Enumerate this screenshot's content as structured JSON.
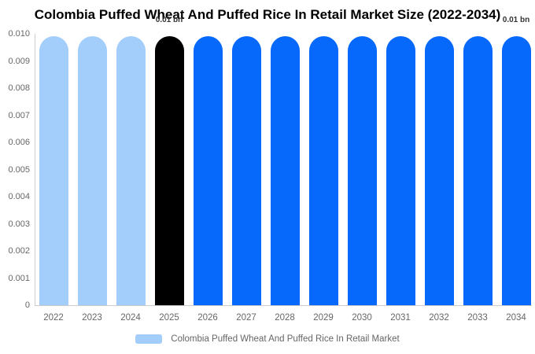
{
  "title": "Colombia Puffed Wheat And Puffed Rice In Retail Market Size (2022-2034)",
  "chart_data": {
    "type": "bar",
    "categories": [
      "2022",
      "2023",
      "2024",
      "2025",
      "2026",
      "2027",
      "2028",
      "2029",
      "2030",
      "2031",
      "2032",
      "2033",
      "2034"
    ],
    "values": [
      0.0099,
      0.0099,
      0.0099,
      0.0099,
      0.0099,
      0.0099,
      0.0099,
      0.0099,
      0.0099,
      0.0099,
      0.0099,
      0.0099,
      0.0099
    ],
    "bar_colors": [
      "#A3CDFB",
      "#A3CDFB",
      "#A3CDFB",
      "#000000",
      "#0768FC",
      "#0768FC",
      "#0768FC",
      "#0768FC",
      "#0768FC",
      "#0768FC",
      "#0768FC",
      "#0768FC",
      "#0768FC"
    ],
    "title": "Colombia Puffed Wheat And Puffed Rice In Retail Market Size (2022-2034)",
    "xlabel": "",
    "ylabel": "",
    "ylim": [
      0,
      0.01
    ],
    "yticks": [
      {
        "value": 0.01,
        "label": "0.010"
      },
      {
        "value": 0.009,
        "label": "0.009"
      },
      {
        "value": 0.008,
        "label": "0.008"
      },
      {
        "value": 0.007,
        "label": "0.007"
      },
      {
        "value": 0.006,
        "label": "0.006"
      },
      {
        "value": 0.005,
        "label": "0.005"
      },
      {
        "value": 0.004,
        "label": "0.004"
      },
      {
        "value": 0.003,
        "label": "0.003"
      },
      {
        "value": 0.002,
        "label": "0.002"
      },
      {
        "value": 0.001,
        "label": "0.001"
      },
      {
        "value": 0,
        "label": "0"
      }
    ],
    "grid": false,
    "annotations": [
      {
        "category": "2025",
        "text": "0.01 bn"
      },
      {
        "category": "2034",
        "text": "0.01 bn"
      }
    ],
    "legend_position": "bottom",
    "legend": {
      "label": "Colombia Puffed Wheat And Puffed Rice In Retail Market",
      "swatch_color": "#A3CDFB"
    },
    "colors": {
      "past_bars": "#A3CDFB",
      "current_year_bar": "#000000",
      "forecast_bars": "#0768FC",
      "axis_line": "#CCCCCC",
      "tick_text": "#666666",
      "title_text": "#000000",
      "annotation_text": "#333333"
    }
  }
}
